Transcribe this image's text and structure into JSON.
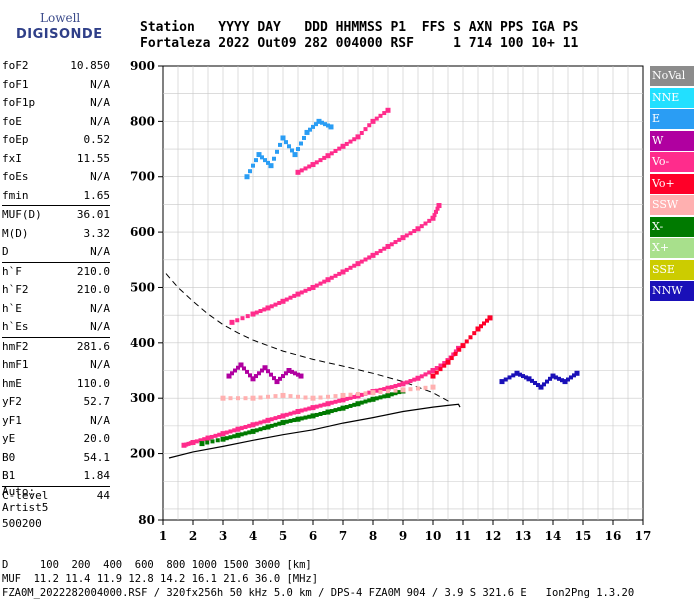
{
  "logo": {
    "line1": "Lowell",
    "line2": "DIGISONDE"
  },
  "header": {
    "line1": "Station   YYYY DAY   DDD HHMMSS P1  FFS S AXN PPS IGA PS",
    "line2": "Fortaleza 2022 Out09 282 004000 RSF     1 714 100 10+ 11"
  },
  "params": {
    "group1": [
      {
        "key": "foF2",
        "value": "10.850"
      },
      {
        "key": "foF1",
        "value": "N/A"
      },
      {
        "key": "foF1p",
        "value": "N/A"
      },
      {
        "key": "foE",
        "value": "N/A"
      },
      {
        "key": "foEp",
        "value": "0.52"
      },
      {
        "key": "fxI",
        "value": "11.55"
      },
      {
        "key": "foEs",
        "value": "N/A"
      },
      {
        "key": "fmin",
        "value": "1.65"
      }
    ],
    "group2": [
      {
        "key": "MUF(D)",
        "value": "36.01"
      },
      {
        "key": "M(D)",
        "value": "3.32"
      },
      {
        "key": "D",
        "value": "N/A"
      }
    ],
    "group3": [
      {
        "key": "h`F",
        "value": "210.0"
      },
      {
        "key": "h`F2",
        "value": "210.0"
      },
      {
        "key": "h`E",
        "value": "N/A"
      },
      {
        "key": "h`Es",
        "value": "N/A"
      }
    ],
    "group4": [
      {
        "key": "hmF2",
        "value": "281.6"
      },
      {
        "key": "hmF1",
        "value": "N/A"
      },
      {
        "key": "hmE",
        "value": "110.0"
      },
      {
        "key": "yF2",
        "value": "52.7"
      },
      {
        "key": "yF1",
        "value": "N/A"
      },
      {
        "key": "yE",
        "value": "20.0"
      },
      {
        "key": "B0",
        "value": "54.1"
      },
      {
        "key": "B1",
        "value": "1.84"
      }
    ],
    "group5": [
      {
        "key": "C-level",
        "value": "44"
      }
    ]
  },
  "auto": {
    "line1": "Auto:",
    "line2": "Artist5",
    "line3": "500200"
  },
  "legend": [
    {
      "label": "NoVal",
      "color": "#8c8c8c"
    },
    {
      "label": "NNE",
      "color": "#22e0ff"
    },
    {
      "label": "E",
      "color": "#2a9df4"
    },
    {
      "label": "W",
      "color": "#b000a0"
    },
    {
      "label": "Vo-",
      "color": "#ff2c8c"
    },
    {
      "label": "Vo+",
      "color": "#ff0028"
    },
    {
      "label": "SSW",
      "color": "#ffb0b0"
    },
    {
      "label": "X-",
      "color": "#007a00"
    },
    {
      "label": "X+",
      "color": "#a8e08c"
    },
    {
      "label": "SSE",
      "color": "#cccc00"
    },
    {
      "label": "NNW",
      "color": "#1a10b8"
    }
  ],
  "footer": {
    "line1": "D     100  200  400  600  800 1000 1500 3000 [km]",
    "line2": "MUF  11.2 11.4 11.9 12.8 14.2 16.1 21.6 36.0 [MHz]",
    "line3": "FZA0M_2022282004000.RSF / 320fx256h 50 kHz 5.0 km / DPS-4 FZA0M 904 / 3.9 S 321.6 E   Ion2Png 1.3.20"
  },
  "chart_data": {
    "type": "scatter",
    "xlim": [
      1,
      17
    ],
    "ylim": [
      80,
      900
    ],
    "x_ticks": [
      "1",
      "2",
      "3",
      "4",
      "5",
      "6",
      "7",
      "8",
      "9",
      "10",
      "11",
      "12",
      "13",
      "14",
      "15",
      "16",
      "17"
    ],
    "y_ticks": [
      "900",
      "800",
      "700",
      "600",
      "500",
      "400",
      "300",
      "200",
      "80"
    ],
    "y_tick_values": [
      900,
      800,
      700,
      600,
      500,
      400,
      300,
      200,
      80
    ],
    "grid": true,
    "profile_line": {
      "x": [
        1.2,
        2,
        3,
        4,
        5,
        6,
        7,
        8,
        9,
        10,
        10.5,
        10.85,
        10.9
      ],
      "y": [
        192,
        203,
        213,
        224,
        234,
        243,
        255,
        265,
        276,
        284,
        287,
        289,
        284
      ]
    },
    "dashed_line": {
      "x": [
        1.1,
        1.5,
        2,
        2.5,
        3,
        3.5,
        4,
        4.5,
        5,
        6,
        7,
        8,
        9,
        10,
        10.6
      ],
      "y": [
        525,
        500,
        475,
        452,
        433,
        418,
        405,
        395,
        385,
        370,
        358,
        345,
        330,
        310,
        292
      ]
    },
    "series": [
      {
        "name": "F trace",
        "color_key": "Vo-",
        "x": [
          1.7,
          2,
          2.5,
          3,
          3.5,
          4,
          4.5,
          5,
          5.5,
          6,
          6.5,
          7,
          7.5,
          8,
          8.5,
          9,
          9.5,
          10,
          10.5,
          10.85
        ],
        "y": [
          215,
          220,
          228,
          236,
          244,
          252,
          260,
          268,
          276,
          283,
          290,
          297,
          304,
          312,
          318,
          326,
          336,
          350,
          368,
          390
        ]
      },
      {
        "name": "X trace",
        "color_key": "X-",
        "x": [
          2.3,
          3,
          3.5,
          4,
          4.5,
          5,
          5.5,
          6,
          6.5,
          7,
          7.5,
          8,
          8.5,
          9
        ],
        "y": [
          218,
          226,
          233,
          240,
          248,
          256,
          262,
          268,
          275,
          282,
          290,
          298,
          305,
          313
        ]
      },
      {
        "name": "2F trace",
        "color_key": "Vo-",
        "x": [
          3.3,
          4,
          4.5,
          5,
          5.5,
          6,
          6.5,
          7,
          7.5,
          8,
          8.5,
          9,
          9.5,
          10,
          10.2
        ],
        "y": [
          437,
          452,
          463,
          475,
          488,
          500,
          514,
          528,
          543,
          558,
          574,
          590,
          606,
          625,
          648
        ]
      },
      {
        "name": "3F trace",
        "color_key": "Vo-",
        "x": [
          5.5,
          6,
          6.5,
          7,
          7.5,
          8,
          8.5
        ],
        "y": [
          708,
          722,
          738,
          755,
          772,
          800,
          820
        ]
      },
      {
        "name": "upper F rise",
        "color_key": "Vo+",
        "x": [
          10,
          10.5,
          11,
          11.5,
          11.9
        ],
        "y": [
          340,
          365,
          395,
          425,
          445
        ]
      },
      {
        "name": "NNW cluster",
        "color_key": "NNW",
        "x": [
          12.3,
          12.8,
          13.2,
          13.6,
          14,
          14.4,
          14.8
        ],
        "y": [
          330,
          345,
          335,
          320,
          340,
          330,
          345
        ]
      },
      {
        "name": "E cluster",
        "color_key": "E",
        "x": [
          3.8,
          4.2,
          4.6,
          5,
          5.4,
          5.8,
          6.2,
          6.6
        ],
        "y": [
          700,
          740,
          720,
          770,
          740,
          780,
          800,
          790
        ]
      },
      {
        "name": "W cluster",
        "color_key": "W",
        "x": [
          3.2,
          3.6,
          4,
          4.4,
          4.8,
          5.2,
          5.6
        ],
        "y": [
          340,
          360,
          335,
          355,
          330,
          350,
          340
        ]
      },
      {
        "name": "SSW band",
        "color_key": "SSW",
        "x": [
          3,
          4,
          5,
          6,
          7,
          8,
          9,
          10
        ],
        "y": [
          300,
          300,
          305,
          300,
          305,
          310,
          315,
          320
        ]
      }
    ]
  }
}
